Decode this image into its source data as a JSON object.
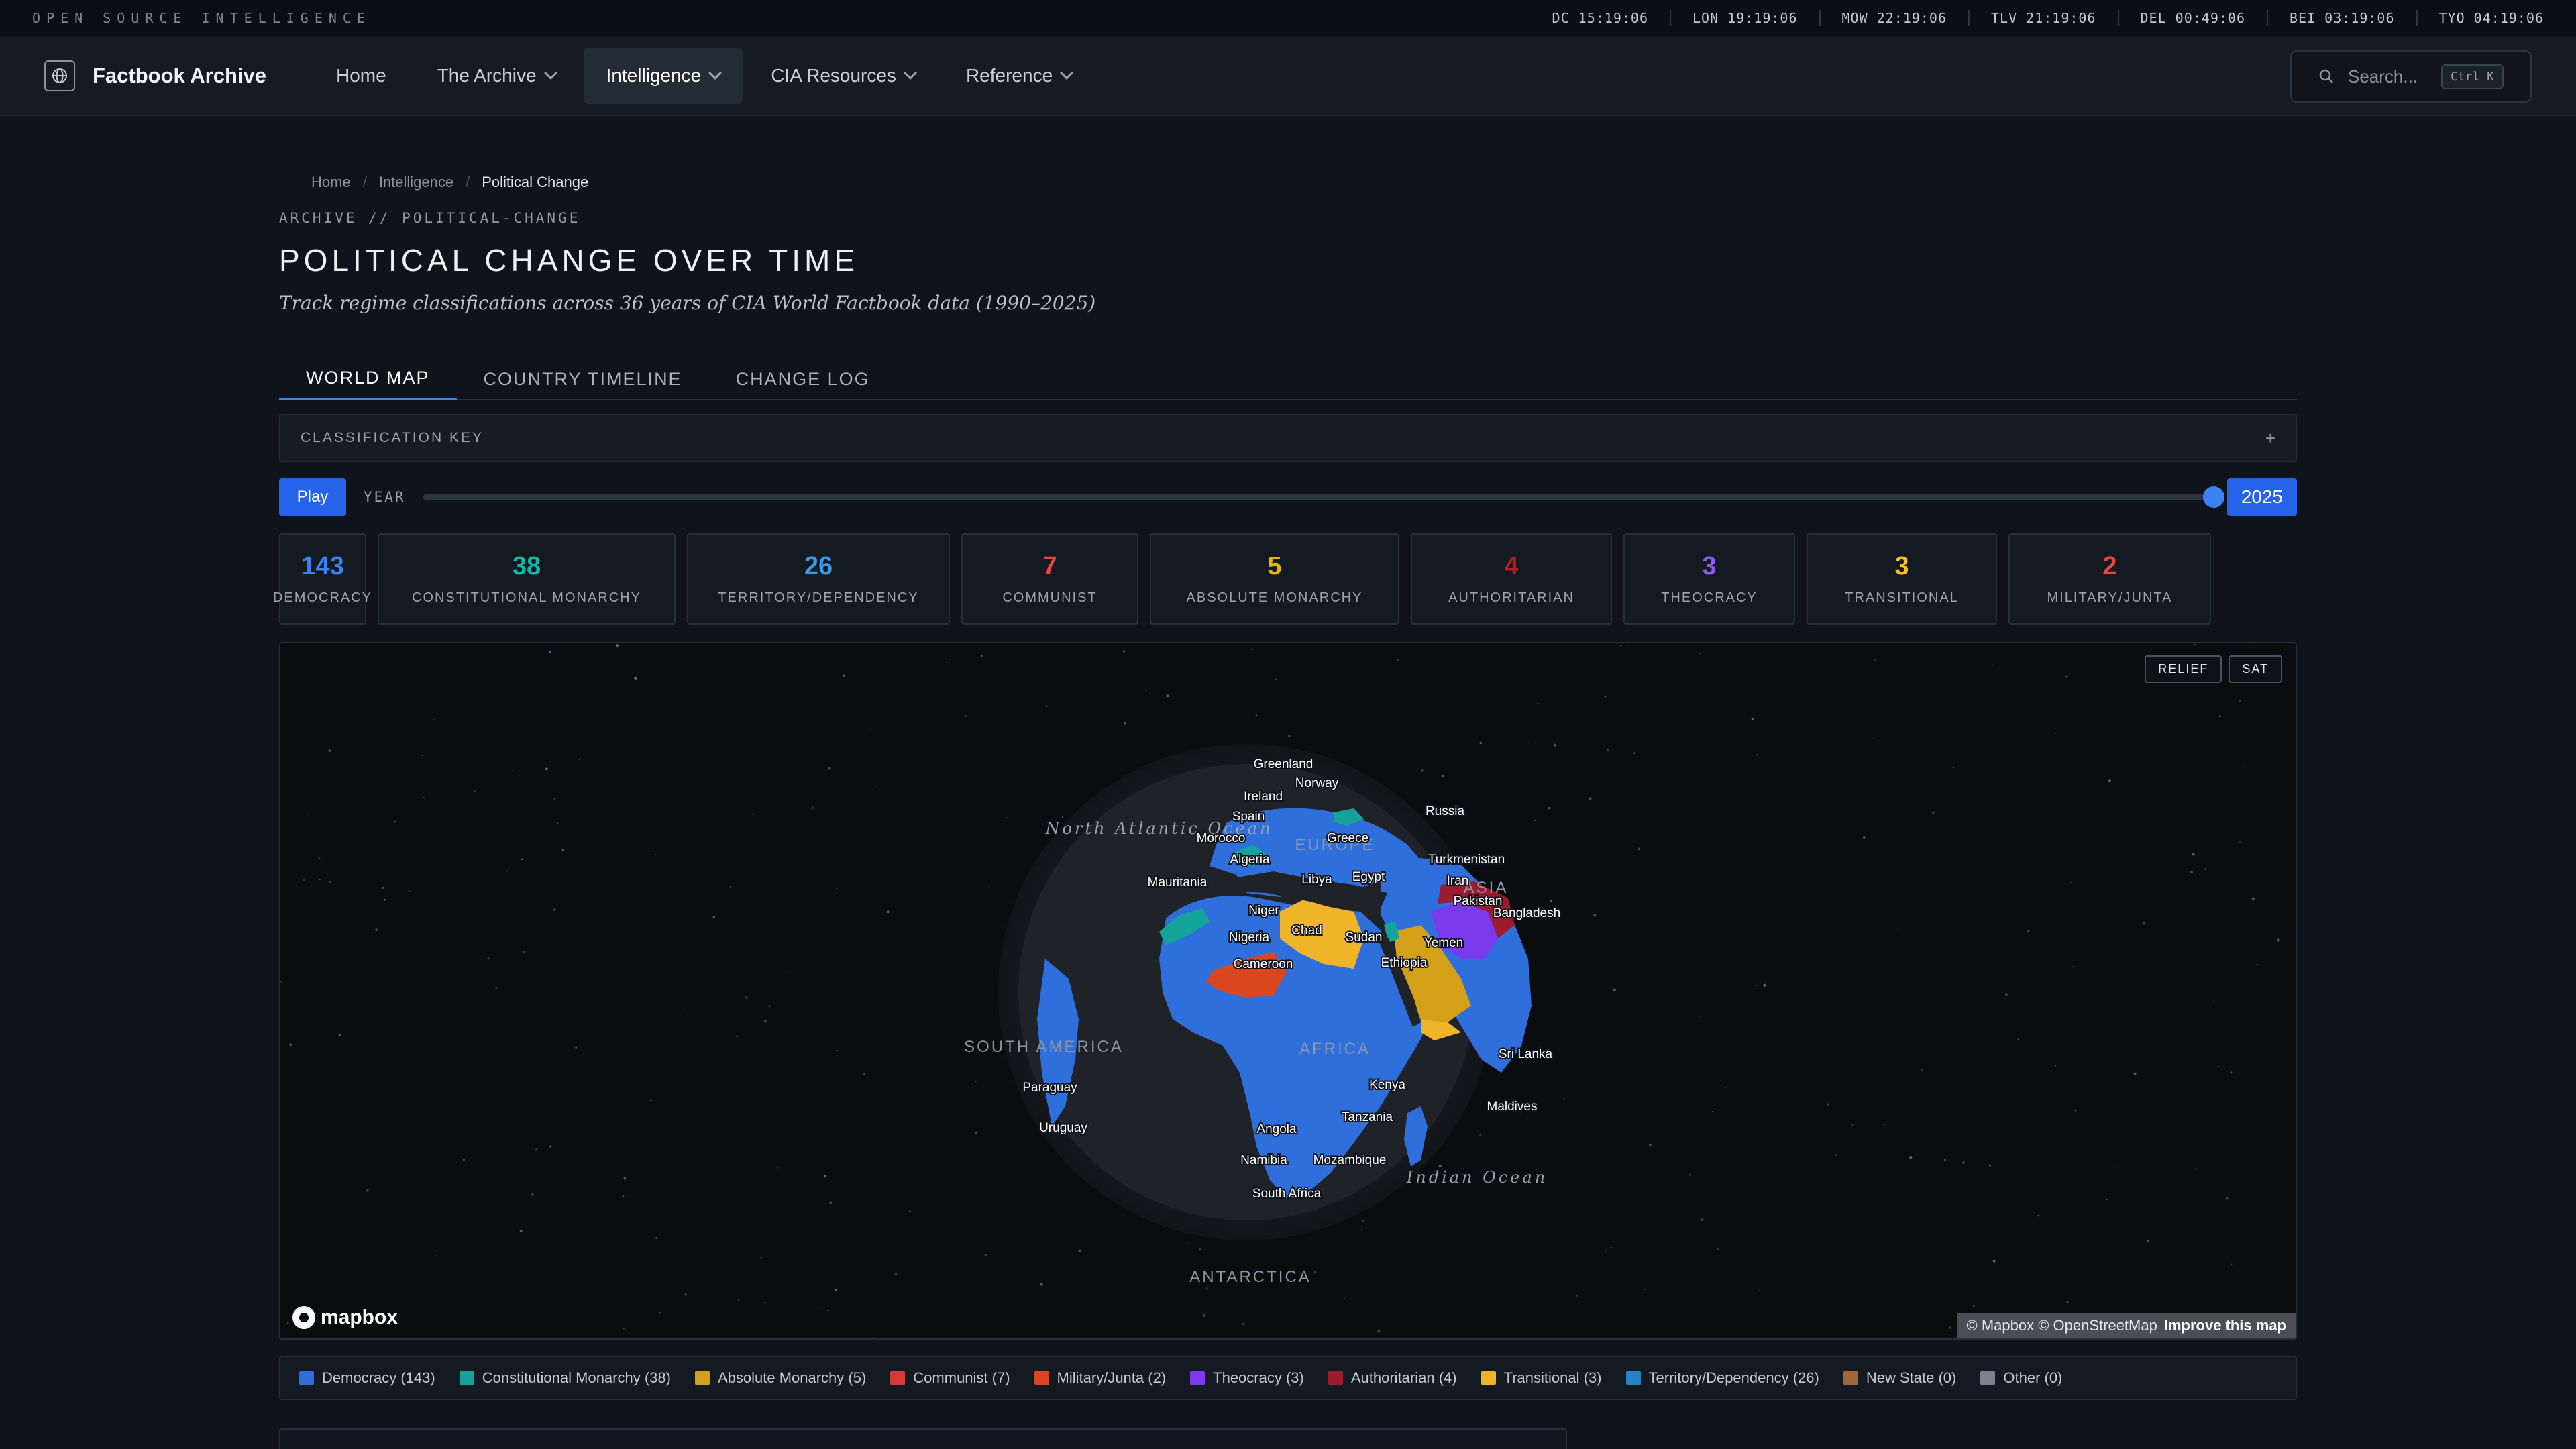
{
  "topbar": {
    "label": "OPEN SOURCE INTELLIGENCE",
    "clocks": [
      "DC 15:19:06",
      "LON 19:19:06",
      "MOW 22:19:06",
      "TLV 21:19:06",
      "DEL 00:49:06",
      "BEI 03:19:06",
      "TYO 04:19:06"
    ]
  },
  "nav": {
    "brand": "Factbook Archive",
    "items": [
      {
        "label": "Home",
        "dropdown": false
      },
      {
        "label": "The Archive",
        "dropdown": true
      },
      {
        "label": "Intelligence",
        "dropdown": true,
        "active": true
      },
      {
        "label": "CIA Resources",
        "dropdown": true
      },
      {
        "label": "Reference",
        "dropdown": true
      }
    ],
    "search_placeholder": "Search...",
    "search_shortcut": "Ctrl K"
  },
  "breadcrumb": [
    "Home",
    "Intelligence",
    "Political Change"
  ],
  "page": {
    "section_tag": "ARCHIVE // POLITICAL-CHANGE",
    "title": "POLITICAL CHANGE OVER TIME",
    "subtitle": "Track regime classifications across 36 years of CIA World Factbook data (1990–2025)"
  },
  "tabs": [
    {
      "label": "WORLD MAP",
      "active": true
    },
    {
      "label": "COUNTRY TIMELINE",
      "active": false
    },
    {
      "label": "CHANGE LOG",
      "active": false
    }
  ],
  "classification_key": {
    "label": "CLASSIFICATION KEY",
    "toggle": "+"
  },
  "player": {
    "play_label": "Play",
    "year_label": "YEAR",
    "year_min": 1990,
    "year_max": 2025,
    "year_value": "2025",
    "position_fraction": 1.0
  },
  "stats": [
    {
      "value": "143",
      "label": "DEMOCRACY",
      "color": "#3b82f6"
    },
    {
      "value": "38",
      "label": "CONSTITUTIONAL MONARCHY",
      "color": "#14b8a6"
    },
    {
      "value": "26",
      "label": "TERRITORY/DEPENDENCY",
      "color": "#3b9ae0"
    },
    {
      "value": "7",
      "label": "COMMUNIST",
      "color": "#ef4444"
    },
    {
      "value": "5",
      "label": "ABSOLUTE MONARCHY",
      "color": "#eab308"
    },
    {
      "value": "4",
      "label": "AUTHORITARIAN",
      "color": "#b91c1c"
    },
    {
      "value": "3",
      "label": "THEOCRACY",
      "color": "#8b5cf6"
    },
    {
      "value": "3",
      "label": "TRANSITIONAL",
      "color": "#fbbf24"
    },
    {
      "value": "2",
      "label": "MILITARY/JUNTA",
      "color": "#ef4444"
    }
  ],
  "map": {
    "controls": [
      "RELIEF",
      "SAT"
    ],
    "logo": "mapbox",
    "attribution": "© Mapbox © OpenStreetMap",
    "attribution_link": "Improve this map",
    "labels": {
      "regions": [
        "EUROPE",
        "ASIA",
        "AFRICA",
        "SOUTH AMERICA",
        "ANTARCTICA"
      ],
      "oceans": [
        "North Atlantic Ocean",
        "Indian Ocean"
      ],
      "countries": [
        "Greenland",
        "Norway",
        "Ireland",
        "Russia",
        "Spain",
        "Morocco",
        "Greece",
        "Algeria",
        "Turkmenistan",
        "Libya",
        "Egypt",
        "Iran",
        "Mauritania",
        "Pakistan",
        "Niger",
        "Bangladesh",
        "Chad",
        "Nigeria",
        "Sudan",
        "Yemen",
        "Cameroon",
        "Ethiopia",
        "Sri Lanka",
        "Paraguay",
        "Kenya",
        "Maldives",
        "Uruguay",
        "Tanzania",
        "Angola",
        "Namibia",
        "Mozambique",
        "South Africa"
      ]
    }
  },
  "legend": [
    {
      "label": "Democracy (143)",
      "color": "#2f6fdb"
    },
    {
      "label": "Constitutional Monarchy (38)",
      "color": "#14a39a"
    },
    {
      "label": "Absolute Monarchy (5)",
      "color": "#d4a017"
    },
    {
      "label": "Communist (7)",
      "color": "#d63b3b"
    },
    {
      "label": "Military/Junta (2)",
      "color": "#d9461f"
    },
    {
      "label": "Theocracy (3)",
      "color": "#7c3aed"
    },
    {
      "label": "Authoritarian (4)",
      "color": "#9b1c2c"
    },
    {
      "label": "Transitional (3)",
      "color": "#f0b429"
    },
    {
      "label": "Territory/Dependency (26)",
      "color": "#2483c5"
    },
    {
      "label": "New State (0)",
      "color": "#a0673a"
    },
    {
      "label": "Other (0)",
      "color": "#7a8291"
    }
  ]
}
